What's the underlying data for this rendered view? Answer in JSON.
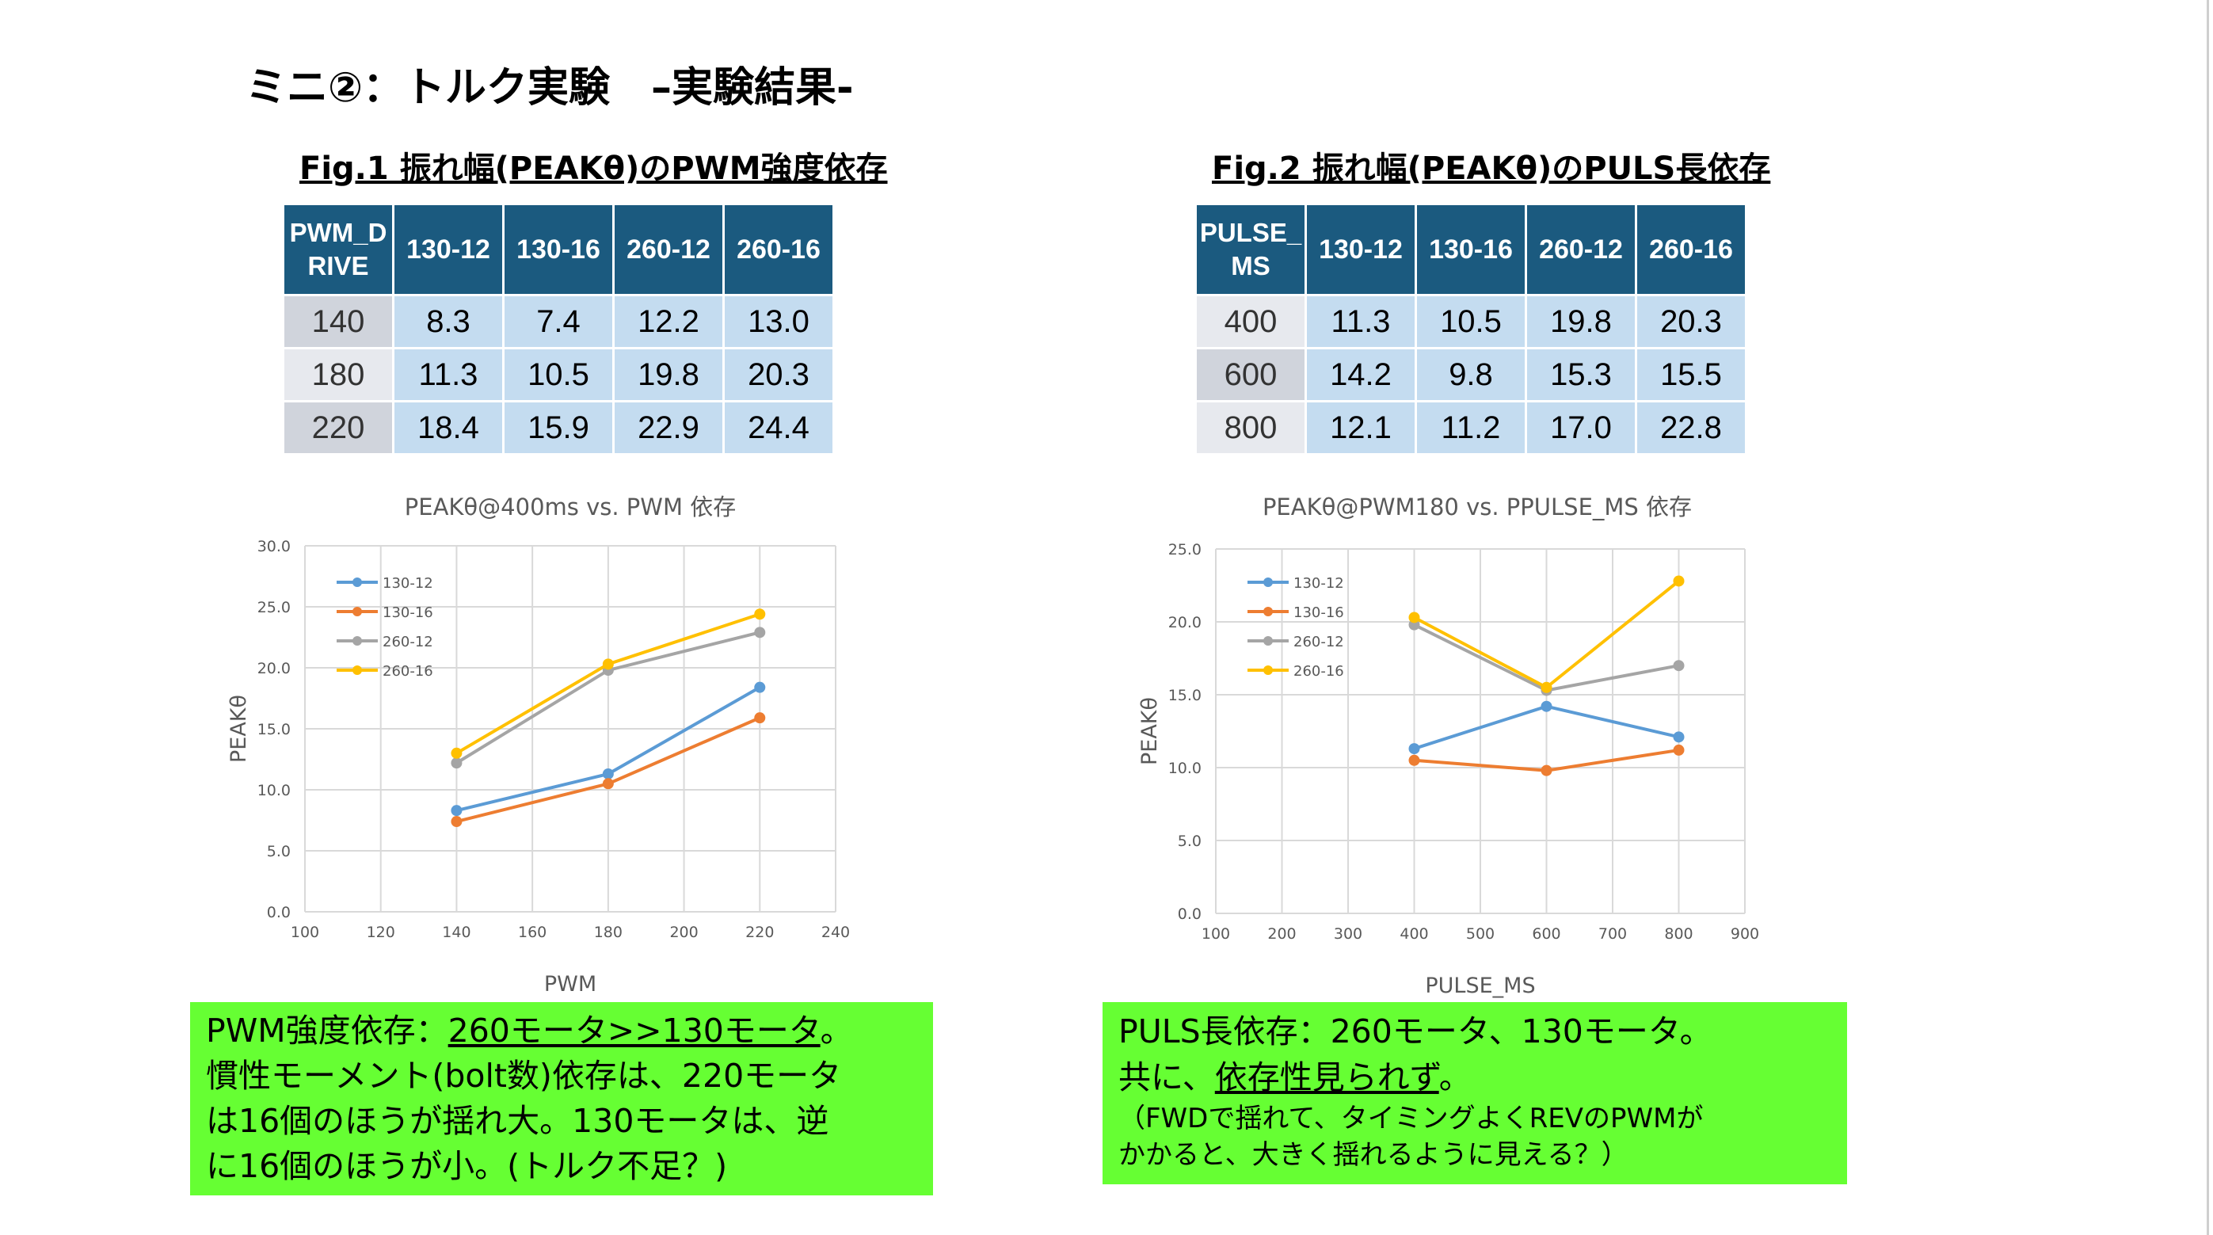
{
  "slide": {
    "title": "ミニ②：トルク実験　–実験結果-"
  },
  "fig1": {
    "title": "Fig.1  振れ幅(PEAKθ)のPWM強度依存",
    "table": {
      "corner": "PWM_DRIVE",
      "columns": [
        "130-12",
        "130-16",
        "260-12",
        "260-16"
      ],
      "rows": [
        {
          "key": "140",
          "values": [
            "8.3",
            "7.4",
            "12.2",
            "13.0"
          ]
        },
        {
          "key": "180",
          "values": [
            "11.3",
            "10.5",
            "19.8",
            "20.3"
          ]
        },
        {
          "key": "220",
          "values": [
            "18.4",
            "15.9",
            "22.9",
            "24.4"
          ]
        }
      ]
    }
  },
  "fig2": {
    "title": "Fig.2  振れ幅(PEAKθ)のPULS長依存",
    "table": {
      "corner": "PULSE_MS",
      "columns": [
        "130-12",
        "130-16",
        "260-12",
        "260-16"
      ],
      "rows": [
        {
          "key": "400",
          "values": [
            "11.3",
            "10.5",
            "19.8",
            "20.3"
          ]
        },
        {
          "key": "600",
          "values": [
            "14.2",
            "9.8",
            "15.3",
            "15.5"
          ]
        },
        {
          "key": "800",
          "values": [
            "12.1",
            "11.2",
            "17.0",
            "22.8"
          ]
        }
      ]
    }
  },
  "chart_data": [
    {
      "type": "line",
      "title": "PEAKθ@400ms vs. PWM 依存",
      "xlabel": "PWM",
      "ylabel": "PEAKθ",
      "xlim": [
        100,
        240
      ],
      "xticks": [
        100,
        120,
        140,
        160,
        180,
        200,
        220,
        240
      ],
      "ylim": [
        0,
        30
      ],
      "yticks": [
        0,
        5,
        10,
        15,
        20,
        25,
        30
      ],
      "grid": true,
      "legend": "top-left",
      "x": [
        140,
        180,
        220
      ],
      "series": [
        {
          "name": "130-12",
          "color": "#5b9bd5",
          "values": [
            8.3,
            11.3,
            18.4
          ]
        },
        {
          "name": "130-16",
          "color": "#ed7d31",
          "values": [
            7.4,
            10.5,
            15.9
          ]
        },
        {
          "name": "260-12",
          "color": "#a5a5a5",
          "values": [
            12.2,
            19.8,
            22.9
          ]
        },
        {
          "name": "260-16",
          "color": "#ffc000",
          "values": [
            13.0,
            20.3,
            24.4
          ]
        }
      ]
    },
    {
      "type": "line",
      "title": "PEAKθ@PWM180 vs. PPULSE_MS  依存",
      "xlabel": "PULSE_MS",
      "ylabel": "PEAKθ",
      "xlim": [
        100,
        900
      ],
      "xticks": [
        100,
        200,
        300,
        400,
        500,
        600,
        700,
        800,
        900
      ],
      "ylim": [
        0,
        25
      ],
      "yticks": [
        0,
        5,
        10,
        15,
        20,
        25
      ],
      "grid": true,
      "legend": "top-left",
      "x": [
        400,
        600,
        800
      ],
      "series": [
        {
          "name": "130-12",
          "color": "#5b9bd5",
          "values": [
            11.3,
            14.2,
            12.1
          ]
        },
        {
          "name": "130-16",
          "color": "#ed7d31",
          "values": [
            10.5,
            9.8,
            11.2
          ]
        },
        {
          "name": "260-12",
          "color": "#a5a5a5",
          "values": [
            19.8,
            15.3,
            17.0
          ]
        },
        {
          "name": "260-16",
          "color": "#ffc000",
          "values": [
            20.3,
            15.5,
            22.8
          ]
        }
      ]
    }
  ],
  "note1": {
    "l1a": "PWM強度依存：",
    "l1b": "260モータ>>130モータ",
    "l1c": "。",
    "l2": "慣性モーメント(bolt数)依存は、220モータ",
    "l3": "は16個のほうが揺れ大。130モータは、逆",
    "l4": "に16個のほうが小。(トルク不足？)"
  },
  "note2": {
    "l1": "PULS長依存：260モータ、130モータ。",
    "l2a": "共に、",
    "l2b": "依存性見られず",
    "l2c": "。",
    "l3": "（FWDで揺れて、タイミングよくREVのPWMが",
    "l4": "かかると、大きく揺れるように見える？）"
  }
}
